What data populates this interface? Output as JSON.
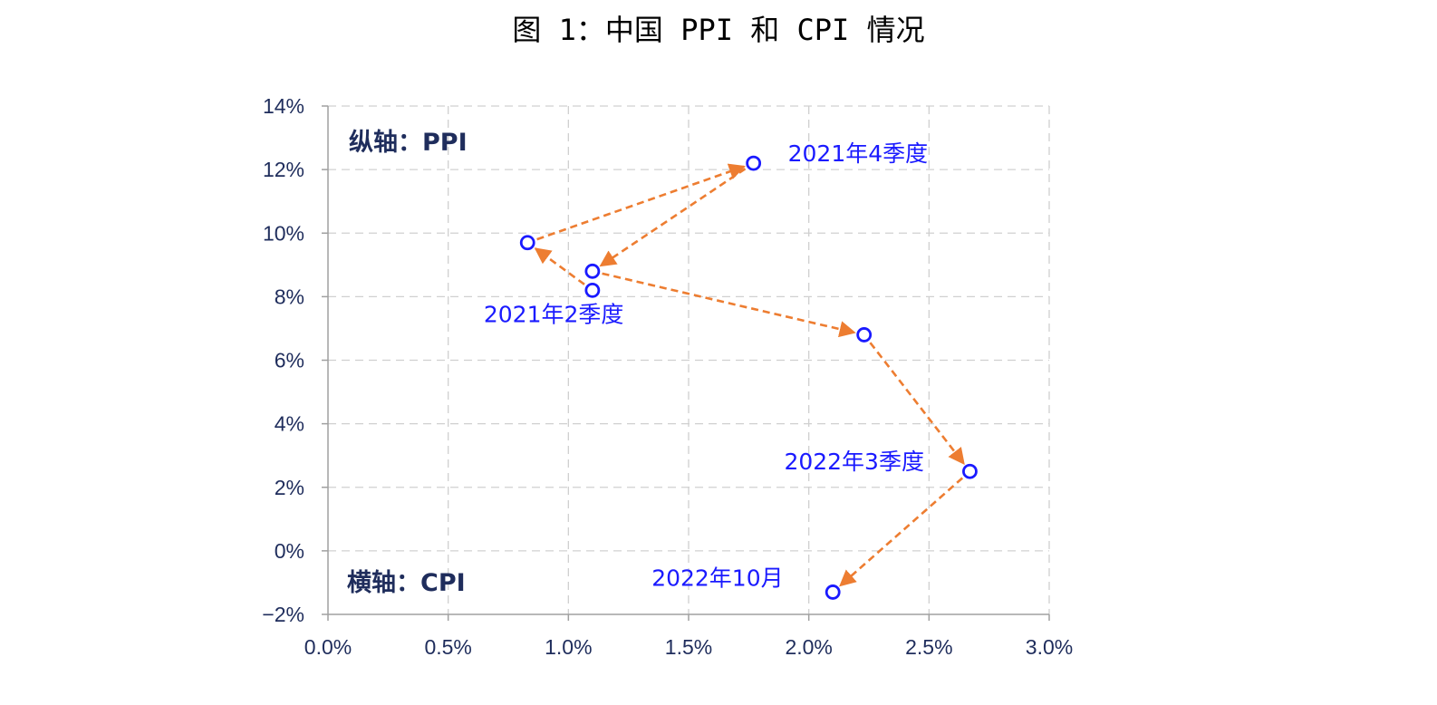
{
  "chart_data": {
    "type": "scatter",
    "title": "图 1：中国 PPI 和 CPI 情况",
    "xlim": [
      0,
      3.0
    ],
    "ylim": [
      -2,
      14
    ],
    "x_ticks": [
      "0.0%",
      "0.5%",
      "1.0%",
      "1.5%",
      "2.0%",
      "2.5%",
      "3.0%"
    ],
    "y_ticks": [
      "−2%",
      "0%",
      "2%",
      "4%",
      "6%",
      "8%",
      "10%",
      "12%",
      "14%"
    ],
    "grid": true,
    "x_axis_note": "横轴：CPI",
    "y_axis_note": "纵轴：PPI",
    "points": [
      {
        "x": 1.1,
        "y": 8.2,
        "label": "2021年2季度"
      },
      {
        "x": 1.1,
        "y": 8.8,
        "label": ""
      },
      {
        "x": 0.83,
        "y": 9.7,
        "label": ""
      },
      {
        "x": 1.77,
        "y": 12.2,
        "label": "2021年4季度"
      },
      {
        "x": 2.23,
        "y": 6.8,
        "label": ""
      },
      {
        "x": 2.67,
        "y": 2.5,
        "label": "2022年3季度"
      },
      {
        "x": 2.1,
        "y": -1.3,
        "label": "2022年10月"
      }
    ],
    "path_order": [
      0,
      2,
      3,
      1,
      4,
      5,
      6
    ],
    "colors": {
      "marker": "#1a1aff",
      "arrow": "#ed7d31",
      "grid": "#d0d0d0",
      "axis": "#a0a0a0",
      "tick_text": "#1f2d5c"
    }
  }
}
